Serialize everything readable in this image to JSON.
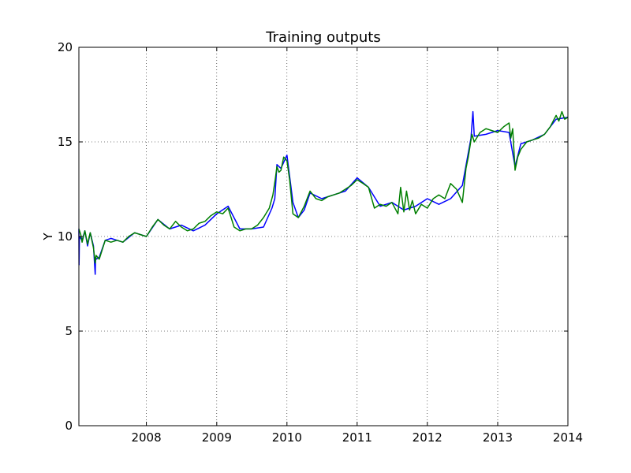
{
  "chart_data": {
    "type": "line",
    "title": "Training outputs",
    "xlabel": "",
    "ylabel": "Y",
    "x_axis": {
      "type": "date",
      "range": [
        "2007-01-15",
        "2014-01-01"
      ],
      "ticks": [
        "2008",
        "2009",
        "2010",
        "2011",
        "2012",
        "2013",
        "2014"
      ]
    },
    "y_axis": {
      "range": [
        0,
        20
      ],
      "ticks": [
        "0",
        "5",
        "10",
        "15",
        "20"
      ]
    },
    "grid": true,
    "legend": "none",
    "series": [
      {
        "color": "#0000ff",
        "x": [
          "2007-01-15",
          "2007-01-16",
          "2007-01-18",
          "2007-02-01",
          "2007-02-15",
          "2007-03-01",
          "2007-03-15",
          "2007-04-01",
          "2007-04-10",
          "2007-04-12",
          "2007-04-15",
          "2007-05-01",
          "2007-06-01",
          "2007-07-01",
          "2007-09-01",
          "2007-11-01",
          "2008-01-01",
          "2008-03-01",
          "2008-05-01",
          "2008-07-01",
          "2008-09-01",
          "2008-11-01",
          "2009-01-01",
          "2009-03-01",
          "2009-05-01",
          "2009-07-01",
          "2009-09-01",
          "2009-10-15",
          "2009-10-30",
          "2009-11-10",
          "2009-11-20",
          "2009-12-01",
          "2010-01-01",
          "2010-02-01",
          "2010-03-01",
          "2010-04-01",
          "2010-05-01",
          "2010-07-01",
          "2010-09-01",
          "2010-11-01",
          "2011-01-01",
          "2011-03-01",
          "2011-05-01",
          "2011-07-01",
          "2011-09-01",
          "2011-11-01",
          "2012-01-01",
          "2012-03-01",
          "2012-05-01",
          "2012-07-01",
          "2012-08-15",
          "2012-08-25",
          "2012-09-01",
          "2012-11-01",
          "2013-01-01",
          "2013-03-01",
          "2013-04-01",
          "2013-05-01",
          "2013-07-01",
          "2013-09-01",
          "2013-11-01",
          "2014-01-01"
        ],
        "y": [
          10.4,
          8.5,
          10.0,
          9.8,
          10.3,
          9.5,
          10.2,
          9.5,
          8.0,
          8.9,
          8.8,
          8.9,
          9.8,
          9.9,
          9.7,
          10.2,
          10.0,
          10.9,
          10.4,
          10.6,
          10.3,
          10.6,
          11.2,
          11.6,
          10.4,
          10.4,
          10.5,
          11.5,
          12.0,
          13.8,
          13.7,
          13.6,
          14.3,
          11.8,
          11.0,
          11.4,
          12.3,
          12.0,
          12.2,
          12.4,
          13.1,
          12.6,
          11.6,
          11.8,
          11.4,
          11.6,
          12.0,
          11.7,
          12.0,
          12.7,
          15.2,
          16.6,
          15.3,
          15.4,
          15.6,
          15.5,
          13.7,
          14.9,
          15.1,
          15.4,
          16.2,
          16.3
        ]
      },
      {
        "color": "#007f00",
        "x": [
          "2007-01-15",
          "2007-01-25",
          "2007-02-01",
          "2007-02-15",
          "2007-03-01",
          "2007-03-15",
          "2007-04-01",
          "2007-04-10",
          "2007-04-15",
          "2007-05-01",
          "2007-06-01",
          "2007-07-01",
          "2007-08-01",
          "2007-09-01",
          "2007-10-01",
          "2007-11-01",
          "2007-12-01",
          "2008-01-01",
          "2008-02-01",
          "2008-03-01",
          "2008-04-01",
          "2008-05-01",
          "2008-06-01",
          "2008-07-01",
          "2008-08-01",
          "2008-09-01",
          "2008-10-01",
          "2008-11-01",
          "2008-12-01",
          "2009-01-01",
          "2009-02-01",
          "2009-03-01",
          "2009-04-01",
          "2009-05-01",
          "2009-06-01",
          "2009-07-01",
          "2009-08-01",
          "2009-09-01",
          "2009-10-01",
          "2009-10-20",
          "2009-11-01",
          "2009-11-10",
          "2009-11-20",
          "2009-12-01",
          "2009-12-15",
          "2010-01-01",
          "2010-01-15",
          "2010-02-01",
          "2010-03-01",
          "2010-04-01",
          "2010-05-01",
          "2010-06-01",
          "2010-07-01",
          "2010-08-01",
          "2010-09-01",
          "2010-10-01",
          "2010-11-01",
          "2010-12-01",
          "2011-01-01",
          "2011-02-01",
          "2011-03-01",
          "2011-04-01",
          "2011-05-01",
          "2011-06-01",
          "2011-07-01",
          "2011-08-01",
          "2011-08-15",
          "2011-09-01",
          "2011-09-15",
          "2011-10-01",
          "2011-10-15",
          "2011-11-01",
          "2011-12-01",
          "2012-01-01",
          "2012-02-01",
          "2012-03-01",
          "2012-04-01",
          "2012-05-01",
          "2012-06-01",
          "2012-07-01",
          "2012-07-20",
          "2012-08-01",
          "2012-08-20",
          "2012-09-01",
          "2012-10-01",
          "2012-11-01",
          "2012-12-01",
          "2013-01-01",
          "2013-02-01",
          "2013-03-01",
          "2013-03-10",
          "2013-03-20",
          "2013-04-01",
          "2013-04-15",
          "2013-05-01",
          "2013-06-01",
          "2013-07-01",
          "2013-08-01",
          "2013-09-01",
          "2013-10-01",
          "2013-11-01",
          "2013-11-15",
          "2013-12-01",
          "2013-12-15",
          "2014-01-01"
        ],
        "y": [
          10.4,
          10.1,
          9.7,
          10.3,
          9.6,
          10.2,
          9.4,
          8.6,
          9.0,
          8.8,
          9.8,
          9.7,
          9.8,
          9.7,
          10.0,
          10.2,
          10.1,
          10.0,
          10.5,
          10.9,
          10.6,
          10.4,
          10.8,
          10.5,
          10.3,
          10.4,
          10.7,
          10.8,
          11.1,
          11.3,
          11.2,
          11.5,
          10.5,
          10.3,
          10.4,
          10.4,
          10.6,
          11.0,
          11.5,
          12.2,
          13.0,
          13.7,
          13.4,
          13.5,
          14.2,
          14.0,
          13.0,
          11.2,
          11.0,
          11.6,
          12.4,
          12.0,
          11.9,
          12.1,
          12.2,
          12.3,
          12.5,
          12.7,
          13.0,
          12.8,
          12.6,
          11.5,
          11.7,
          11.6,
          11.8,
          11.2,
          12.6,
          11.3,
          12.4,
          11.4,
          11.9,
          11.2,
          11.7,
          11.5,
          12.0,
          12.2,
          12.0,
          12.8,
          12.5,
          11.8,
          13.6,
          14.2,
          15.4,
          15.0,
          15.5,
          15.7,
          15.6,
          15.5,
          15.8,
          16.0,
          15.2,
          15.7,
          13.5,
          14.2,
          14.6,
          15.0,
          15.1,
          15.2,
          15.4,
          15.8,
          16.4,
          16.1,
          16.6,
          16.2,
          16.3
        ]
      }
    ]
  }
}
